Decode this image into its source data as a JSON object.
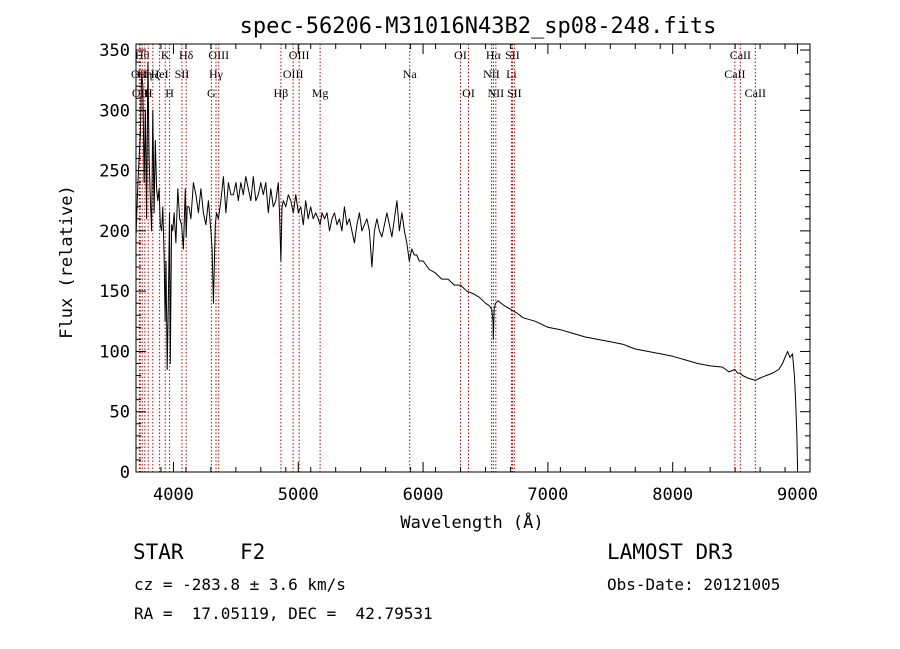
{
  "chart_data": {
    "type": "line",
    "title": "spec-56206-M31016N43B2_sp08-248.fits",
    "xlabel": "Wavelength (Å)",
    "ylabel": "Flux (relative)",
    "xlim": [
      3700,
      9100
    ],
    "ylim": [
      0,
      355
    ],
    "xticks": [
      4000,
      5000,
      6000,
      7000,
      8000,
      9000
    ],
    "yticks": [
      0,
      50,
      100,
      150,
      200,
      250,
      300,
      350
    ],
    "series": [
      {
        "name": "flux",
        "x": [
          3700,
          3715,
          3725,
          3735,
          3745,
          3755,
          3765,
          3775,
          3785,
          3795,
          3805,
          3815,
          3825,
          3835,
          3845,
          3855,
          3865,
          3875,
          3885,
          3895,
          3905,
          3915,
          3925,
          3933,
          3940,
          3950,
          3960,
          3968,
          3975,
          3985,
          3995,
          4005,
          4020,
          4035,
          4050,
          4065,
          4080,
          4095,
          4102,
          4110,
          4125,
          4140,
          4160,
          4180,
          4200,
          4220,
          4240,
          4260,
          4280,
          4300,
          4310,
          4320,
          4335,
          4345,
          4360,
          4380,
          4400,
          4420,
          4440,
          4460,
          4480,
          4500,
          4520,
          4540,
          4560,
          4580,
          4600,
          4620,
          4640,
          4660,
          4680,
          4700,
          4720,
          4740,
          4760,
          4780,
          4800,
          4820,
          4840,
          4850,
          4861,
          4870,
          4880,
          4900,
          4920,
          4940,
          4960,
          4980,
          5000,
          5020,
          5040,
          5060,
          5080,
          5100,
          5120,
          5140,
          5160,
          5175,
          5190,
          5210,
          5230,
          5250,
          5270,
          5290,
          5310,
          5330,
          5350,
          5370,
          5390,
          5410,
          5430,
          5450,
          5470,
          5490,
          5510,
          5530,
          5550,
          5570,
          5590,
          5610,
          5630,
          5650,
          5670,
          5690,
          5710,
          5730,
          5750,
          5770,
          5790,
          5810,
          5830,
          5850,
          5870,
          5890,
          5910,
          5930,
          5950,
          5970,
          6000,
          6050,
          6100,
          6150,
          6200,
          6250,
          6300,
          6350,
          6400,
          6450,
          6500,
          6530,
          6550,
          6560,
          6563,
          6570,
          6580,
          6600,
          6650,
          6700,
          6750,
          6800,
          6900,
          7000,
          7100,
          7200,
          7300,
          7400,
          7500,
          7600,
          7650,
          7700,
          7800,
          7900,
          8000,
          8100,
          8200,
          8300,
          8400,
          8450,
          8498,
          8520,
          8542,
          8560,
          8600,
          8662,
          8700,
          8750,
          8800,
          8850,
          8880,
          8900,
          8920,
          8940,
          8960,
          8975,
          8985,
          8995,
          9000
        ],
        "y": [
          195,
          240,
          260,
          280,
          330,
          320,
          240,
          300,
          210,
          340,
          260,
          225,
          200,
          300,
          215,
          275,
          235,
          225,
          235,
          205,
          200,
          220,
          180,
          125,
          175,
          85,
          150,
          215,
          90,
          205,
          200,
          215,
          190,
          235,
          210,
          205,
          185,
          235,
          195,
          220,
          220,
          210,
          240,
          230,
          215,
          235,
          215,
          205,
          225,
          200,
          185,
          140,
          205,
          215,
          210,
          225,
          245,
          215,
          240,
          230,
          230,
          240,
          225,
          240,
          230,
          245,
          235,
          225,
          245,
          225,
          230,
          240,
          230,
          240,
          215,
          235,
          220,
          225,
          240,
          215,
          175,
          220,
          225,
          220,
          230,
          225,
          215,
          230,
          215,
          220,
          205,
          225,
          210,
          220,
          210,
          215,
          210,
          205,
          215,
          210,
          215,
          200,
          210,
          215,
          205,
          210,
          200,
          220,
          205,
          210,
          200,
          190,
          205,
          215,
          200,
          205,
          210,
          200,
          170,
          200,
          210,
          200,
          195,
          205,
          215,
          205,
          195,
          210,
          225,
          200,
          215,
          200,
          190,
          175,
          185,
          180,
          180,
          175,
          175,
          168,
          165,
          160,
          160,
          155,
          155,
          150,
          148,
          145,
          140,
          138,
          135,
          125,
          110,
          135,
          140,
          142,
          138,
          135,
          132,
          128,
          125,
          120,
          118,
          115,
          112,
          110,
          108,
          106,
          104,
          102,
          100,
          98,
          96,
          93,
          90,
          88,
          87,
          83,
          85,
          82,
          82,
          80,
          78,
          76,
          78,
          80,
          82,
          85,
          90,
          95,
          100,
          95,
          98,
          80,
          60,
          30,
          5
        ]
      }
    ],
    "lines": [
      {
        "x": 3727,
        "label": "OII",
        "row": 2
      },
      {
        "x": 3734,
        "label": "OII",
        "row": 3
      },
      {
        "x": 3750,
        "label": "Hθ",
        "row": 1
      },
      {
        "x": 3771,
        "label": "Hη",
        "row": 2
      },
      {
        "x": 3798,
        "label": "H",
        "row": 3
      },
      {
        "x": 3835,
        "label": "Hζ",
        "row": 2
      },
      {
        "x": 3889,
        "label": "HeI",
        "row": 2
      },
      {
        "x": 3934,
        "label": "K",
        "row": 1
      },
      {
        "x": 3969,
        "label": "H",
        "row": 3
      },
      {
        "x": 4068,
        "label": "SII",
        "row": 2
      },
      {
        "x": 4102,
        "label": "Hδ",
        "row": 1
      },
      {
        "x": 4304,
        "label": "G",
        "row": 3
      },
      {
        "x": 4341,
        "label": "Hγ",
        "row": 2
      },
      {
        "x": 4363,
        "label": "OIII",
        "row": 1
      },
      {
        "x": 4861,
        "label": "Hβ",
        "row": 3
      },
      {
        "x": 4959,
        "label": "OIII",
        "row": 2
      },
      {
        "x": 5007,
        "label": "OIII",
        "row": 1
      },
      {
        "x": 5175,
        "label": "Mg",
        "row": 3
      },
      {
        "x": 5893,
        "label": "Na",
        "row": 2
      },
      {
        "x": 6300,
        "label": "OI",
        "row": 1
      },
      {
        "x": 6364,
        "label": "OI",
        "row": 3
      },
      {
        "x": 6548,
        "label": "NII",
        "row": 2
      },
      {
        "x": 6563,
        "label": "Hα",
        "row": 1
      },
      {
        "x": 6583,
        "label": "NII",
        "row": 3
      },
      {
        "x": 6708,
        "label": "Li",
        "row": 2
      },
      {
        "x": 6716,
        "label": "SII",
        "row": 1
      },
      {
        "x": 6731,
        "label": "SII",
        "row": 3
      },
      {
        "x": 8498,
        "label": "CaII",
        "row": 2
      },
      {
        "x": 8542,
        "label": "CaII",
        "row": 1
      },
      {
        "x": 8662,
        "label": "CaII",
        "row": 3
      }
    ]
  },
  "footer": {
    "object_class": "STAR",
    "subclass": "F2",
    "survey": "LAMOST DR3",
    "cz": "cz = -283.8 ± 3.6 km/s",
    "obs_date": "Obs-Date: 20121005",
    "coords": "RA =  17.05119, DEC =  42.79531"
  },
  "colors": {
    "line_marker": "#c00000",
    "spectrum": "#000000"
  }
}
